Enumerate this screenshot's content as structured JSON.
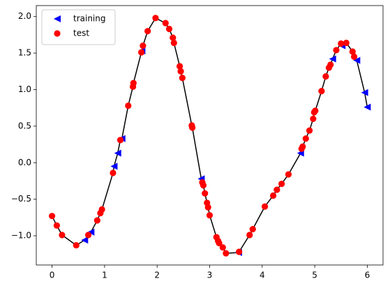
{
  "chart_data": {
    "type": "scatter",
    "xlim": [
      -0.3,
      6.3
    ],
    "ylim": [
      -1.4,
      2.15
    ],
    "xticks": [
      0,
      1,
      2,
      3,
      4,
      5,
      6
    ],
    "yticks": [
      {
        "value": -1,
        "label": "−1.0"
      },
      {
        "value": -0.5,
        "label": "−0.5"
      },
      {
        "value": 0,
        "label": "0.0"
      },
      0.5,
      {
        "value": 1,
        "label": "1.0"
      },
      1.5,
      {
        "value": 2,
        "label": "2.0"
      }
    ],
    "legend": "upper left",
    "line": {
      "color": "#000000",
      "x": [
        0,
        0.09,
        0.19,
        0.46,
        0.62,
        0.69,
        0.74,
        0.86,
        0.92,
        0.95,
        1.16,
        1.18,
        1.25,
        1.3,
        1.33,
        1.45,
        1.54,
        1.55,
        1.7,
        1.71,
        1.73,
        1.82,
        1.97,
        2.16,
        2.23,
        2.3,
        2.32,
        2.43,
        2.45,
        2.48,
        2.66,
        2.67,
        2.84,
        2.86,
        2.88,
        2.91,
        2.95,
        2.97,
        3.0,
        3.13,
        3.16,
        3.18,
        3.25,
        3.31,
        3.55,
        3.56,
        3.76,
        3.82,
        4.05,
        4.21,
        4.28,
        4.37,
        4.5,
        4.73,
        4.75,
        4.77,
        4.83,
        4.9,
        4.97,
        4.99,
        5.01,
        5.13,
        5.21,
        5.27,
        5.3,
        5.34,
        5.41,
        5.5,
        5.52,
        5.6,
        5.72,
        5.75,
        5.8,
        5.95,
        6.0
      ],
      "values": [
        -0.73,
        -0.86,
        -0.99,
        -1.13,
        -1.06,
        -0.99,
        -0.95,
        -0.79,
        -0.69,
        -0.64,
        -0.14,
        -0.05,
        0.13,
        0.31,
        0.33,
        0.78,
        1.04,
        1.09,
        1.51,
        1.53,
        1.6,
        1.8,
        1.98,
        1.91,
        1.83,
        1.71,
        1.64,
        1.32,
        1.25,
        1.16,
        0.51,
        0.48,
        -0.22,
        -0.27,
        -0.31,
        -0.42,
        -0.55,
        -0.61,
        -0.72,
        -1.02,
        -1.07,
        -1.1,
        -1.16,
        -1.24,
        -1.23,
        -1.22,
        -0.99,
        -0.91,
        -0.6,
        -0.45,
        -0.37,
        -0.29,
        -0.16,
        0.13,
        0.19,
        0.22,
        0.33,
        0.44,
        0.6,
        0.69,
        0.71,
        0.98,
        1.18,
        1.3,
        1.34,
        1.42,
        1.54,
        1.63,
        1.6,
        1.64,
        1.52,
        1.45,
        1.4,
        0.96,
        0.76
      ]
    },
    "series": [
      {
        "name": "training",
        "color": "#0000ff",
        "marker": "triangle-left",
        "x": [
          0.62,
          0.74,
          1.18,
          1.25,
          1.33,
          1.71,
          2.84,
          3.55,
          4.73,
          5.34,
          5.52,
          5.8,
          5.95,
          6.0
        ],
        "values": [
          -1.06,
          -0.95,
          -0.05,
          0.13,
          0.33,
          1.53,
          -0.22,
          -1.23,
          0.13,
          1.42,
          1.6,
          1.4,
          0.96,
          0.76
        ]
      },
      {
        "name": "test",
        "color": "#ff0000",
        "marker": "circle",
        "x": [
          0,
          0.09,
          0.19,
          0.46,
          0.69,
          0.86,
          0.92,
          0.95,
          1.16,
          1.3,
          1.45,
          1.54,
          1.55,
          1.7,
          1.73,
          1.82,
          1.97,
          2.16,
          2.23,
          2.3,
          2.32,
          2.43,
          2.45,
          2.48,
          2.66,
          2.67,
          2.86,
          2.88,
          2.91,
          2.95,
          2.97,
          3.0,
          3.13,
          3.16,
          3.18,
          3.25,
          3.31,
          3.56,
          3.76,
          3.82,
          4.05,
          4.21,
          4.28,
          4.37,
          4.5,
          4.75,
          4.77,
          4.83,
          4.9,
          4.97,
          4.99,
          5.01,
          5.13,
          5.21,
          5.27,
          5.3,
          5.41,
          5.5,
          5.6,
          5.72,
          5.75
        ],
        "values": [
          -0.73,
          -0.86,
          -0.99,
          -1.13,
          -0.99,
          -0.79,
          -0.69,
          -0.64,
          -0.14,
          0.31,
          0.78,
          1.04,
          1.09,
          1.51,
          1.6,
          1.8,
          1.98,
          1.91,
          1.83,
          1.71,
          1.64,
          1.32,
          1.25,
          1.16,
          0.51,
          0.48,
          -0.27,
          -0.31,
          -0.42,
          -0.55,
          -0.61,
          -0.72,
          -1.02,
          -1.07,
          -1.1,
          -1.16,
          -1.24,
          -1.22,
          -0.99,
          -0.91,
          -0.6,
          -0.45,
          -0.37,
          -0.29,
          -0.16,
          0.19,
          0.22,
          0.33,
          0.44,
          0.6,
          0.69,
          0.71,
          0.98,
          1.18,
          1.3,
          1.34,
          1.54,
          1.63,
          1.64,
          1.52,
          1.45
        ]
      }
    ]
  }
}
